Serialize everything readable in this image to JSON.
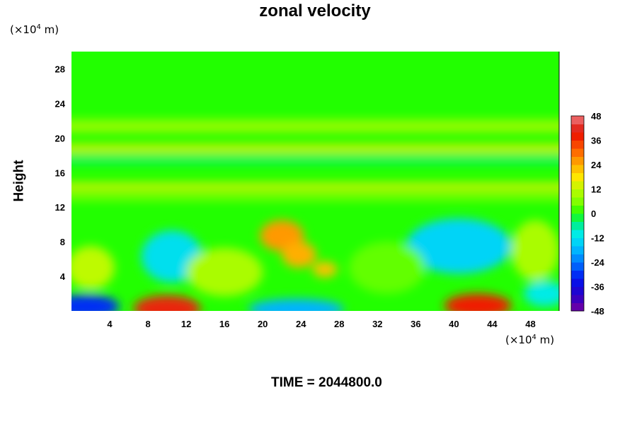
{
  "chart_data": {
    "type": "heatmap",
    "title": "zonal velocity",
    "ylabel": "Height",
    "xunit": {
      "prefix": "(×10",
      "exp": "4",
      "suffix": " m)"
    },
    "yunit": {
      "prefix": "(×10",
      "exp": "4",
      "suffix": " m)"
    },
    "xlim": [
      0,
      51
    ],
    "ylim": [
      0,
      30
    ],
    "xticks": [
      4,
      8,
      12,
      16,
      20,
      24,
      28,
      32,
      36,
      40,
      44,
      48
    ],
    "yticks": [
      4,
      8,
      12,
      16,
      20,
      24,
      28
    ],
    "colorbar": {
      "min": -48,
      "max": 48,
      "step": 4,
      "ticks": [
        48,
        36,
        24,
        12,
        0,
        -12,
        -24,
        -36,
        -48
      ]
    },
    "background_value": 0,
    "horizontal_bands": [
      {
        "y": 21.8,
        "width": 0.7,
        "value": 8
      },
      {
        "y": 21.0,
        "width": 0.6,
        "value": 12
      },
      {
        "y": 18.8,
        "width": 1.0,
        "value": 14
      },
      {
        "y": 17.5,
        "width": 0.8,
        "value": -4
      },
      {
        "y": 14.4,
        "width": 0.9,
        "value": 14
      },
      {
        "y": 13.2,
        "width": 0.8,
        "value": 6
      }
    ],
    "blobs": [
      {
        "x": 1.5,
        "y": 0.5,
        "rx": 3.5,
        "ry": 1.4,
        "value": -30
      },
      {
        "x": 10.0,
        "y": 0.3,
        "rx": 3.5,
        "ry": 1.5,
        "value": 40
      },
      {
        "x": 23.5,
        "y": 0.2,
        "rx": 5.0,
        "ry": 1.2,
        "value": -18
      },
      {
        "x": 42.5,
        "y": 0.6,
        "rx": 3.5,
        "ry": 1.4,
        "value": 38
      },
      {
        "x": 49.5,
        "y": 2.0,
        "rx": 2.2,
        "ry": 1.5,
        "value": -10
      },
      {
        "x": 10.5,
        "y": 6.3,
        "rx": 3.2,
        "ry": 3.0,
        "value": -12
      },
      {
        "x": 40.5,
        "y": 7.5,
        "rx": 5.5,
        "ry": 3.2,
        "value": -14
      },
      {
        "x": 22.0,
        "y": 8.7,
        "rx": 2.3,
        "ry": 1.8,
        "value": 26
      },
      {
        "x": 23.8,
        "y": 6.5,
        "rx": 1.8,
        "ry": 1.5,
        "value": 24
      },
      {
        "x": 26.5,
        "y": 4.8,
        "rx": 1.3,
        "ry": 0.9,
        "value": 22
      },
      {
        "x": 2.0,
        "y": 5.0,
        "rx": 2.5,
        "ry": 2.5,
        "value": 12
      },
      {
        "x": 16.0,
        "y": 4.5,
        "rx": 4.0,
        "ry": 2.8,
        "value": 10
      },
      {
        "x": 33.0,
        "y": 5.0,
        "rx": 4.0,
        "ry": 3.0,
        "value": 4
      },
      {
        "x": 48.5,
        "y": 7.0,
        "rx": 2.5,
        "ry": 3.5,
        "value": 10
      }
    ]
  }
}
